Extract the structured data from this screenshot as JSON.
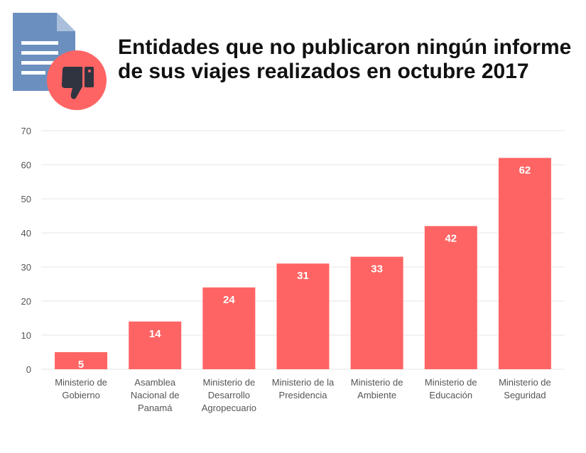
{
  "header": {
    "title_line1": "Entidades que no publicaron ningún informe",
    "title_line2": "de sus viajes realizados en octubre 2017",
    "icon": "document-thumbs-down-icon"
  },
  "colors": {
    "bar": "#ff6464",
    "document": "#6b8fbf",
    "document_fold": "#a9bfdc",
    "badge": "#ff6464",
    "thumb": "#2f3440",
    "grid": "#e6e6e6"
  },
  "chart_data": {
    "type": "bar",
    "title": "Entidades que no publicaron ningún informe de sus viajes realizados en octubre 2017",
    "categories": [
      "Ministerio de Gobierno",
      "Asamblea Nacional de Panamá",
      "Ministerio de Desarrollo Agropecuario",
      "Ministerio de la Presidencia",
      "Ministerio de Ambiente",
      "Ministerio de Educación",
      "Ministerio de Seguridad"
    ],
    "category_lines": [
      [
        "Ministerio de",
        "Gobierno"
      ],
      [
        "Asamblea",
        "Nacional de",
        "Panamá"
      ],
      [
        "Ministerio de",
        "Desarrollo",
        "Agropecuario"
      ],
      [
        "Ministerio de la",
        "Presidencia"
      ],
      [
        "Ministerio de",
        "Ambiente"
      ],
      [
        "Ministerio de",
        "Educación"
      ],
      [
        "Ministerio de",
        "Seguridad"
      ]
    ],
    "values": [
      5,
      14,
      24,
      31,
      33,
      42,
      62
    ],
    "ylim": [
      0,
      70
    ],
    "yticks": [
      0,
      10,
      20,
      30,
      40,
      50,
      60,
      70
    ],
    "grid": true,
    "data_labels": true
  }
}
